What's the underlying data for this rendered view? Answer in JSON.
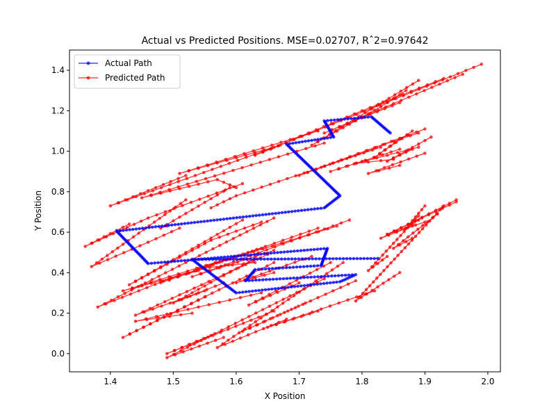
{
  "chart_data": {
    "type": "line",
    "title": "Actual vs Predicted Positions. MSE=0.02707, Rˆ2=0.97642",
    "xlabel": "X Position",
    "ylabel": "Y Position",
    "xlim": [
      1.335,
      2.02
    ],
    "ylim": [
      -0.09,
      1.5
    ],
    "xticks": [
      1.4,
      1.5,
      1.6,
      1.7,
      1.8,
      1.9,
      2.0
    ],
    "xtick_labels": [
      "1.4",
      "1.5",
      "1.6",
      "1.7",
      "1.8",
      "1.9",
      "2.0"
    ],
    "yticks": [
      0.0,
      0.2,
      0.4,
      0.6,
      0.8,
      1.0,
      1.2,
      1.4
    ],
    "ytick_labels": [
      "0.0",
      "0.2",
      "0.4",
      "0.6",
      "0.8",
      "1.0",
      "1.2",
      "1.4"
    ],
    "grid": false,
    "legend_position": "top-left",
    "series": [
      {
        "name": "Actual Path",
        "color": "#0000ff",
        "vertices": [
          [
            1.845,
            1.09
          ],
          [
            1.815,
            1.17
          ],
          [
            1.74,
            1.15
          ],
          [
            1.755,
            1.07
          ],
          [
            1.68,
            1.035
          ],
          [
            1.765,
            0.78
          ],
          [
            1.74,
            0.72
          ],
          [
            1.41,
            0.605
          ],
          [
            1.46,
            0.445
          ],
          [
            1.745,
            0.52
          ],
          [
            1.735,
            0.435
          ],
          [
            1.63,
            0.415
          ],
          [
            1.615,
            0.36
          ],
          [
            1.79,
            0.39
          ],
          [
            1.765,
            0.355
          ],
          [
            1.6,
            0.3
          ],
          [
            1.53,
            0.465
          ],
          [
            1.825,
            0.47
          ]
        ]
      },
      {
        "name": "Predicted Path",
        "color": "#ff0000",
        "segments": [
          [
            [
              1.89,
              1.35
            ],
            [
              1.72,
              1.03
            ],
            [
              1.83,
              1.22
            ],
            [
              1.87,
              1.3
            ]
          ],
          [
            [
              1.9,
              1.11
            ],
            [
              1.7,
              0.88
            ],
            [
              1.85,
              1.05
            ],
            [
              1.89,
              1.09
            ]
          ],
          [
            [
              1.83,
              1.02
            ],
            [
              1.6,
              0.78
            ],
            [
              1.56,
              0.72
            ]
          ],
          [
            [
              1.59,
              0.82
            ],
            [
              1.48,
              0.62
            ],
            [
              1.49,
              0.63
            ]
          ],
          [
            [
              1.74,
              1.04
            ],
            [
              1.45,
              0.77
            ],
            [
              1.57,
              0.86
            ],
            [
              1.6,
              0.82
            ]
          ],
          [
            [
              1.73,
              1.1
            ],
            [
              1.51,
              0.89
            ],
            [
              1.66,
              1.02
            ]
          ],
          [
            [
              1.67,
              1.03
            ],
            [
              1.4,
              0.73
            ],
            [
              1.52,
              0.88
            ]
          ],
          [
            [
              1.43,
              0.64
            ],
            [
              1.36,
              0.53
            ],
            [
              1.46,
              0.67
            ],
            [
              1.61,
              0.84
            ]
          ],
          [
            [
              1.52,
              0.76
            ],
            [
              1.37,
              0.43
            ],
            [
              1.46,
              0.55
            ],
            [
              1.51,
              0.62
            ]
          ],
          [
            [
              1.61,
              0.66
            ],
            [
              1.43,
              0.34
            ],
            [
              1.56,
              0.56
            ],
            [
              1.64,
              0.65
            ]
          ],
          [
            [
              1.66,
              0.67
            ],
            [
              1.38,
              0.23
            ],
            [
              1.51,
              0.39
            ],
            [
              1.55,
              0.42
            ]
          ],
          [
            [
              1.64,
              0.52
            ],
            [
              1.42,
              0.31
            ],
            [
              1.54,
              0.41
            ]
          ],
          [
            [
              1.73,
              0.62
            ],
            [
              1.48,
              0.35
            ],
            [
              1.6,
              0.48
            ]
          ],
          [
            [
              1.78,
              0.66
            ],
            [
              1.53,
              0.38
            ],
            [
              1.66,
              0.51
            ]
          ],
          [
            [
              1.76,
              0.63
            ],
            [
              1.54,
              0.42
            ],
            [
              1.63,
              0.45
            ]
          ],
          [
            [
              1.72,
              0.48
            ],
            [
              1.6,
              0.35
            ],
            [
              1.66,
              0.4
            ]
          ],
          [
            [
              1.65,
              0.49
            ],
            [
              1.44,
              0.19
            ],
            [
              1.55,
              0.31
            ]
          ],
          [
            [
              1.63,
              0.47
            ],
            [
              1.5,
              0.25
            ],
            [
              1.58,
              0.35
            ]
          ],
          [
            [
              1.66,
              0.45
            ],
            [
              1.42,
              0.08
            ],
            [
              1.55,
              0.28
            ]
          ],
          [
            [
              1.64,
              0.3
            ],
            [
              1.44,
              0.16
            ],
            [
              1.53,
              0.2
            ]
          ],
          [
            [
              1.66,
              0.21
            ],
            [
              1.49,
              0.0
            ],
            [
              1.56,
              0.09
            ]
          ],
          [
            [
              1.74,
              0.37
            ],
            [
              1.49,
              -0.02
            ],
            [
              1.58,
              0.08
            ]
          ],
          [
            [
              1.75,
              0.45
            ],
            [
              1.62,
              0.24
            ],
            [
              1.7,
              0.35
            ]
          ],
          [
            [
              1.77,
              0.45
            ],
            [
              1.57,
              0.03
            ],
            [
              1.68,
              0.17
            ]
          ],
          [
            [
              1.79,
              0.36
            ],
            [
              1.61,
              0.11
            ],
            [
              1.71,
              0.25
            ]
          ],
          [
            [
              1.82,
              0.31
            ],
            [
              1.65,
              0.13
            ],
            [
              1.73,
              0.21
            ]
          ],
          [
            [
              1.93,
              0.73
            ],
            [
              1.79,
              0.26
            ],
            [
              1.86,
              0.4
            ]
          ],
          [
            [
              1.9,
              0.73
            ],
            [
              1.87,
              0.62
            ],
            [
              1.89,
              0.66
            ]
          ],
          [
            [
              1.95,
              0.76
            ],
            [
              1.83,
              0.57
            ],
            [
              1.88,
              0.63
            ]
          ],
          [
            [
              1.89,
              0.68
            ],
            [
              1.81,
              0.41
            ],
            [
              1.84,
              0.48
            ]
          ],
          [
            [
              1.92,
              0.69
            ],
            [
              1.85,
              0.52
            ],
            [
              1.88,
              0.57
            ]
          ],
          [
            [
              1.95,
              0.75
            ],
            [
              1.84,
              0.59
            ],
            [
              1.9,
              0.65
            ]
          ],
          [
            [
              1.99,
              1.43
            ],
            [
              1.63,
              0.98
            ],
            [
              1.8,
              1.2
            ],
            [
              1.93,
              1.36
            ]
          ],
          [
            [
              1.96,
              1.38
            ],
            [
              1.74,
              1.09
            ],
            [
              1.86,
              1.24
            ]
          ],
          [
            [
              1.89,
              1.02
            ],
            [
              1.79,
              0.94
            ],
            [
              1.85,
              0.96
            ]
          ],
          [
            [
              1.9,
              0.99
            ],
            [
              1.81,
              0.89
            ],
            [
              1.86,
              0.93
            ]
          ],
          [
            [
              1.86,
              1.01
            ],
            [
              1.75,
              0.9
            ],
            [
              1.8,
              0.95
            ]
          ],
          [
            [
              1.88,
              1.1
            ],
            [
              1.82,
              0.97
            ],
            [
              1.86,
              1.06
            ]
          ],
          [
            [
              1.91,
              1.07
            ],
            [
              1.84,
              0.95
            ],
            [
              1.88,
              1.01
            ]
          ]
        ]
      }
    ]
  }
}
